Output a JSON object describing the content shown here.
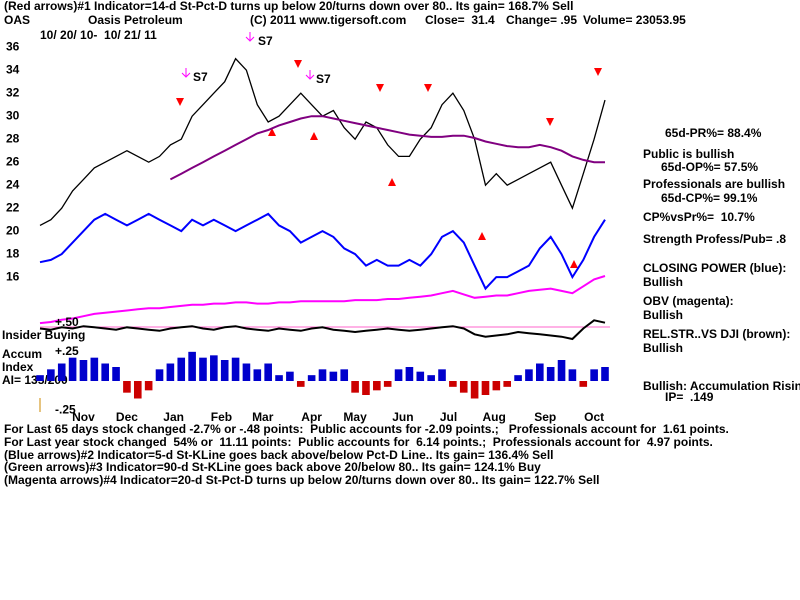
{
  "header": {
    "indicator_line": "(Red arrows)#1 Indicator=14-d St-Pct-D turns up below 20/turns down over 80.. Its gain= 168.7% Sell",
    "symbol": "OAS",
    "company": "Oasis Petroleum",
    "copyright": "(C) 2011 www.tigersoft.com",
    "close": "Close=  31.4",
    "change": "Change= .95",
    "volume": "Volume= 23053.95",
    "date_range": "10/ 20/ 10-  10/ 21/ 11"
  },
  "annotations": [
    "S7",
    "S7",
    "S7"
  ],
  "chart_data": [
    {
      "type": "line",
      "x": [
        0,
        1,
        2,
        3,
        4,
        5,
        6,
        7,
        8,
        9,
        10,
        11,
        12,
        13,
        14,
        15,
        16,
        17,
        18,
        19,
        20,
        21,
        22,
        23,
        24,
        25,
        26,
        27,
        28,
        29,
        30,
        31,
        32,
        33,
        34,
        35,
        36,
        37,
        38,
        39,
        40,
        41,
        42,
        43,
        44,
        45,
        46,
        47,
        48,
        49,
        50,
        51,
        52
      ],
      "xlim": [
        0,
        52
      ],
      "ylim": [
        11.4,
        37.5
      ],
      "yticks": [
        16,
        18,
        20,
        22,
        24,
        26,
        28,
        30,
        32,
        34,
        36
      ],
      "series": [
        {
          "color": "#000000",
          "values": [
            20.5,
            21,
            22,
            23.5,
            24.5,
            25.5,
            26,
            26.5,
            27,
            26.5,
            26,
            26.5,
            27.5,
            28,
            30,
            31,
            32,
            33,
            35,
            34,
            31,
            29.5,
            30,
            31,
            32,
            31,
            30,
            30.5,
            29,
            28,
            29.5,
            29,
            27.5,
            26.5,
            26.5,
            28,
            29,
            31,
            32,
            30.5,
            28,
            24,
            25,
            24,
            24.5,
            25,
            25.5,
            26,
            24,
            22,
            25,
            28,
            31.4
          ]
        },
        {
          "color": "#800080",
          "values": [
            null,
            null,
            null,
            null,
            null,
            null,
            null,
            null,
            null,
            null,
            null,
            null,
            24.5,
            25,
            25.5,
            26,
            26.5,
            27,
            27.5,
            28,
            28.5,
            28.8,
            29.2,
            29.5,
            29.8,
            30,
            30,
            29.8,
            29.6,
            29.4,
            29.2,
            29,
            28.8,
            28.6,
            28.4,
            28.3,
            28.2,
            28.2,
            28.3,
            28.3,
            28.1,
            27.8,
            27.6,
            27.4,
            27.3,
            27.3,
            27.5,
            27.3,
            27,
            26.5,
            26.2,
            26,
            26
          ]
        },
        {
          "name": "CLOSING POWER (blue):",
          "color": "#0000ff",
          "values": [
            17.3,
            17.5,
            18,
            19,
            20,
            21,
            21.5,
            21,
            20.5,
            21,
            21.5,
            21,
            20.5,
            20,
            21,
            20.5,
            21,
            20.5,
            20,
            20.5,
            21,
            21.5,
            20.5,
            20,
            19,
            19.5,
            20,
            19.5,
            18.5,
            18,
            17,
            17.5,
            17,
            17,
            17.5,
            17,
            18,
            19.5,
            20,
            19,
            17,
            15,
            16,
            16,
            16.5,
            17,
            18.5,
            19.5,
            18,
            16,
            17.5,
            19.5,
            21
          ]
        },
        {
          "name": "OBV (magenta):",
          "color": "#ff00ff",
          "values": [
            12,
            12.1,
            12.3,
            12.4,
            12.6,
            12.8,
            12.9,
            13,
            13.1,
            13.2,
            13.3,
            13.3,
            13.4,
            13.5,
            13.6,
            13.6,
            13.7,
            13.7,
            13.8,
            13.8,
            13.7,
            13.7,
            13.8,
            13.8,
            13.9,
            13.9,
            13.9,
            13.9,
            13.9,
            14,
            14,
            14,
            14.1,
            14.1,
            14.2,
            14.3,
            14.4,
            14.6,
            14.8,
            14.5,
            14.2,
            14.3,
            14.4,
            14.4,
            14.6,
            14.8,
            14.9,
            15,
            14.8,
            14.6,
            15.2,
            15.8,
            16.1
          ]
        }
      ]
    },
    {
      "type": "bar",
      "x": [
        0,
        1,
        2,
        3,
        4,
        5,
        6,
        7,
        8,
        9,
        10,
        11,
        12,
        13,
        14,
        15,
        16,
        17,
        18,
        19,
        20,
        21,
        22,
        23,
        24,
        25,
        26,
        27,
        28,
        29,
        30,
        31,
        32,
        33,
        34,
        35,
        36,
        37,
        38,
        39,
        40,
        41,
        42,
        43,
        44,
        45,
        46,
        47,
        48,
        49,
        50,
        51,
        52
      ],
      "xlim": [
        0,
        52
      ],
      "ylim": [
        -0.3,
        0.6
      ],
      "yticks": [
        {
          "value": 0.5,
          "label": "+.50"
        },
        {
          "value": 0.25,
          "label": "+.25"
        },
        {
          "value": -0.25,
          "label": "-.25"
        }
      ],
      "xticks": [
        {
          "value": 4,
          "label": "Nov"
        },
        {
          "value": 8,
          "label": "Dec"
        },
        {
          "value": 12.3,
          "label": "Jan"
        },
        {
          "value": 16.7,
          "label": "Feb"
        },
        {
          "value": 20.5,
          "label": "Mar"
        },
        {
          "value": 25,
          "label": "Apr"
        },
        {
          "value": 29,
          "label": "May"
        },
        {
          "value": 33.4,
          "label": "Jun"
        },
        {
          "value": 37.6,
          "label": "Jul"
        },
        {
          "value": 41.8,
          "label": "Aug"
        },
        {
          "value": 46.5,
          "label": "Sep"
        },
        {
          "value": 51,
          "label": "Oct"
        }
      ],
      "color": "#0000cc",
      "negative_color": "#cc0000",
      "values": [
        0.05,
        0.1,
        0.15,
        0.2,
        0.18,
        0.2,
        0.15,
        0.12,
        -0.1,
        -0.15,
        -0.08,
        0.1,
        0.15,
        0.2,
        0.25,
        0.2,
        0.22,
        0.18,
        0.2,
        0.15,
        0.1,
        0.15,
        0.05,
        0.08,
        -0.05,
        0.05,
        0.1,
        0.08,
        0.1,
        -0.1,
        -0.12,
        -0.08,
        -0.05,
        0.1,
        0.12,
        0.08,
        0.05,
        0.1,
        -0.05,
        -0.1,
        -0.15,
        -0.12,
        -0.08,
        -0.05,
        0.05,
        0.1,
        0.15,
        0.12,
        0.18,
        0.1,
        -0.05,
        0.1,
        0.12
      ],
      "series": [
        {
          "name": "REL.STR..VS DJI (brown):",
          "color": "#000000",
          "values": [
            0.45,
            0.44,
            0.46,
            0.45,
            0.47,
            0.46,
            0.45,
            0.44,
            0.46,
            0.45,
            0.44,
            0.43,
            0.45,
            0.46,
            0.47,
            0.45,
            0.44,
            0.46,
            0.47,
            0.45,
            0.44,
            0.43,
            0.45,
            0.44,
            0.43,
            0.45,
            0.46,
            0.44,
            0.43,
            0.42,
            0.43,
            0.44,
            0.45,
            0.44,
            0.43,
            0.44,
            0.45,
            0.46,
            0.47,
            0.45,
            0.4,
            0.38,
            0.39,
            0.4,
            0.42,
            0.41,
            0.4,
            0.39,
            0.38,
            0.36,
            0.45,
            0.52,
            0.5
          ]
        }
      ]
    }
  ],
  "side_notes": [
    "65d-PR%= 88.4%",
    "Public is bullish",
    "65d-OP%= 57.5%",
    "Professionals are bullish",
    "65d-CP%= 99.1%",
    "CP%vsPr%=  10.7%",
    "Strength Profess/Pub= .8",
    "Bullish",
    "Bullish",
    "Bullish",
    "Bullish: Accumulation Rising",
    "IP=  .149"
  ],
  "left_labels": [
    "Insider Buying",
    "Accum",
    "Index",
    "AI= 135/200"
  ],
  "footer": [
    "For Last 65 days stock changed -2.7% or -.48 points:  Public accounts for -2.09 points.;   Professionals account for  1.61 points.",
    "For Last year stock changed  54% or  11.11 points:  Public accounts for  6.14 points.;  Professionals account for  4.97 points.",
    "(Blue arrows)#2 Indicator=5-d St-KLine goes back above/below Pct-D Line.. Its gain= 136.4% Sell",
    "(Green arrows)#3 Indicator=90-d St-KLine goes back above 20/below 80.. Its gain= 124.1% Buy",
    "(Magenta arrows)#4 Indicator=20-d St-Pct-D turns up below 20/turns down over 80.. Its gain= 122.7% Sell"
  ]
}
